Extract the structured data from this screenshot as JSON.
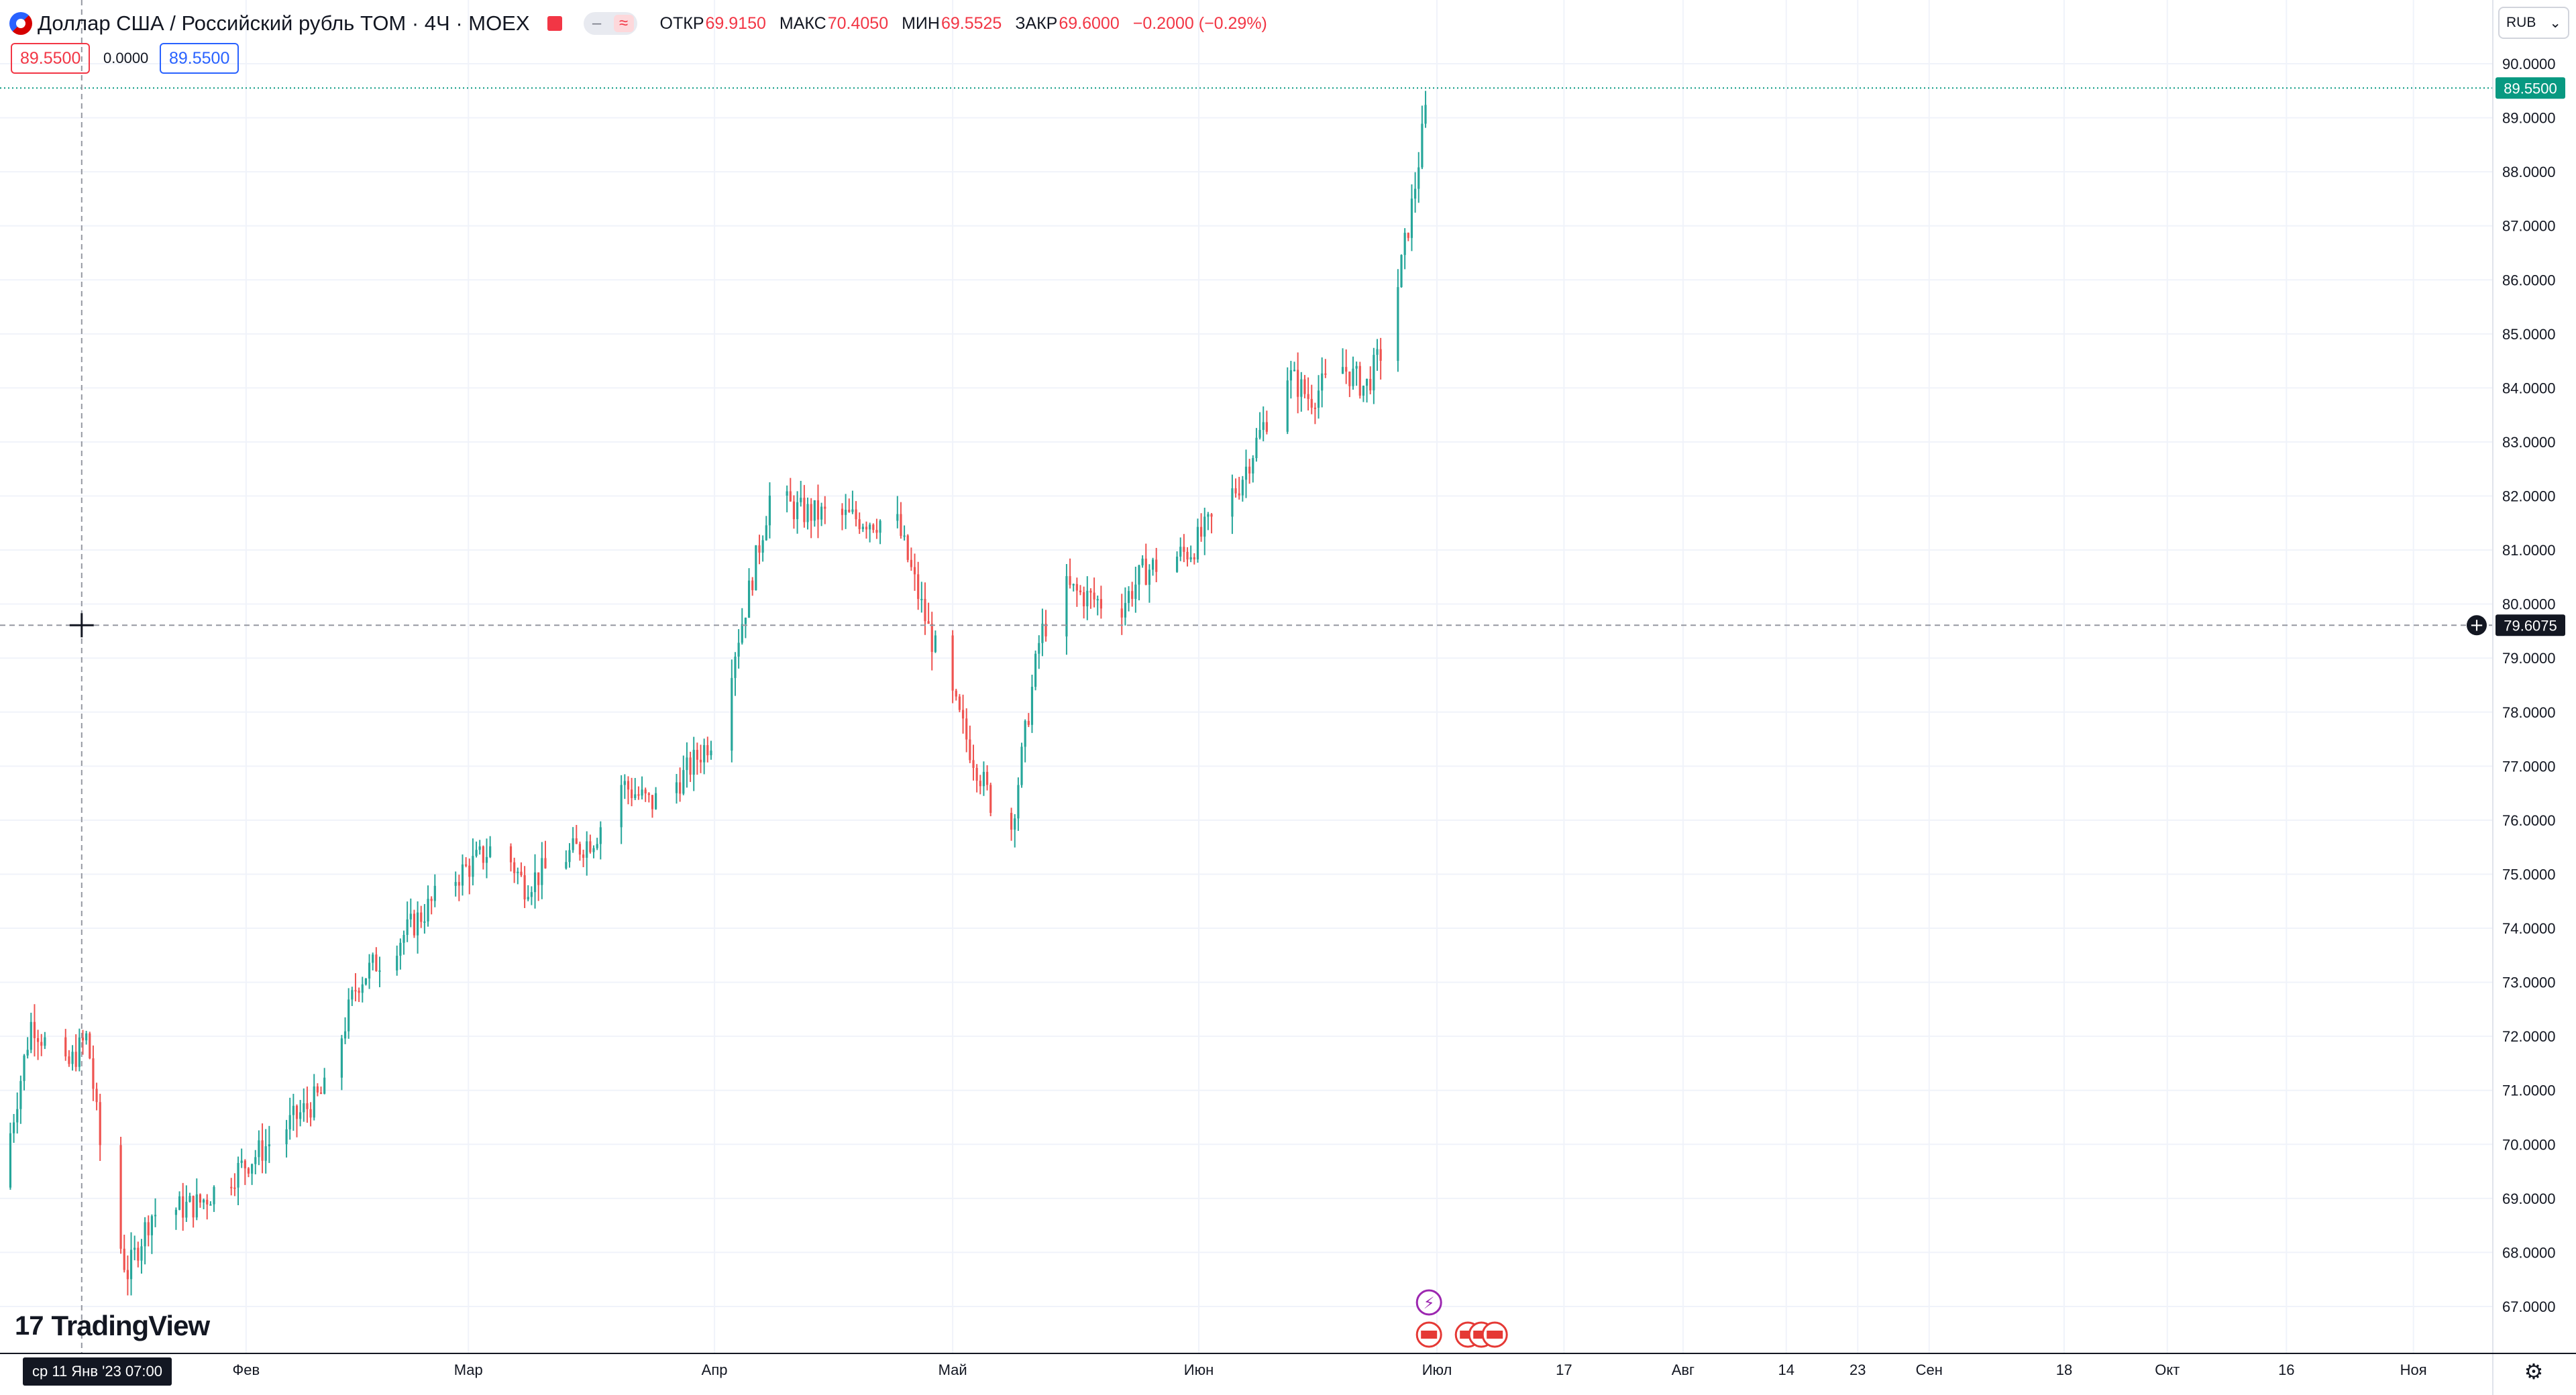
{
  "header": {
    "title": "Доллар США / Российский рубль TOM · 4Ч · MOEX",
    "ohlc": [
      {
        "label": "ОТКР",
        "value": "69.9150"
      },
      {
        "label": "МАКС",
        "value": "70.4050"
      },
      {
        "label": "МИН",
        "value": "69.5525"
      },
      {
        "label": "ЗАКР",
        "value": "69.6000"
      }
    ],
    "change": "−0.2000 (−0.29%)"
  },
  "trade": {
    "sell": "89.5500",
    "spread": "0.0000",
    "buy": "89.5500"
  },
  "currency_button": {
    "label": "RUB"
  },
  "crosshair": {
    "price": "79.6075",
    "date": "ср 11 Янв '23   07:00"
  },
  "brand": {
    "name": "TradingView"
  },
  "colors": {
    "up": "#26a69a",
    "down": "#ef5350",
    "grid": "#f0f3fa",
    "last_price": "#089981",
    "crosshair_label": "#131722"
  },
  "chart_data": {
    "type": "candlestick",
    "last_price": 89.55,
    "ylim": [
      66.5,
      90.5
    ],
    "y_ticks": [
      "67.0000",
      "68.0000",
      "69.0000",
      "70.0000",
      "71.0000",
      "72.0000",
      "73.0000",
      "74.0000",
      "75.0000",
      "76.0000",
      "77.0000",
      "78.0000",
      "79.0000",
      "80.0000",
      "81.0000",
      "82.0000",
      "83.0000",
      "84.0000",
      "85.0000",
      "86.0000",
      "87.0000",
      "88.0000",
      "89.0000",
      "90.0000"
    ],
    "x_ticks": [
      "Фев",
      "Мар",
      "Апр",
      "Май",
      "Июн",
      "Июл",
      "17",
      "Авг",
      "14",
      "23",
      "Сен",
      "18",
      "Окт",
      "16",
      "Ноя"
    ],
    "x_range": [
      "2023-01-01",
      "2023-11-05"
    ],
    "series_dates": [
      "2023-01-01",
      "2023-06-30"
    ],
    "close_path": [
      [
        "2023-01-01",
        69.2
      ],
      [
        "2023-01-05",
        72.3
      ],
      [
        "2023-01-09",
        71.3
      ],
      [
        "2023-01-12",
        72.0
      ],
      [
        "2023-01-14",
        69.5
      ],
      [
        "2023-01-17",
        67.6
      ],
      [
        "2023-01-20",
        68.7
      ],
      [
        "2023-01-26",
        68.9
      ],
      [
        "2023-02-03",
        69.9
      ],
      [
        "2023-02-11",
        71.0
      ],
      [
        "2023-02-15",
        73.0
      ],
      [
        "2023-02-21",
        73.9
      ],
      [
        "2023-02-27",
        74.9
      ],
      [
        "2023-03-05",
        75.6
      ],
      [
        "2023-03-08",
        74.8
      ],
      [
        "2023-03-17",
        75.7
      ],
      [
        "2023-03-20",
        76.7
      ],
      [
        "2023-03-24",
        76.3
      ],
      [
        "2023-03-28",
        76.8
      ],
      [
        "2023-04-01",
        77.6
      ],
      [
        "2023-04-05",
        80.0
      ],
      [
        "2023-04-08",
        82.0
      ],
      [
        "2023-04-12",
        81.7
      ],
      [
        "2023-04-18",
        81.6
      ],
      [
        "2023-04-24",
        81.5
      ],
      [
        "2023-04-28",
        79.5
      ],
      [
        "2023-05-03",
        77.4
      ],
      [
        "2023-05-08",
        75.5
      ],
      [
        "2023-05-12",
        79.4
      ],
      [
        "2023-05-15",
        80.3
      ],
      [
        "2023-05-22",
        79.9
      ],
      [
        "2023-05-25",
        80.6
      ],
      [
        "2023-05-31",
        81.0
      ],
      [
        "2023-06-06",
        82.2
      ],
      [
        "2023-06-12",
        84.3
      ],
      [
        "2023-06-15",
        83.8
      ],
      [
        "2023-06-19",
        84.4
      ],
      [
        "2023-06-22",
        84.0
      ],
      [
        "2023-06-25",
        85.0
      ],
      [
        "2023-06-28",
        87.5
      ],
      [
        "2023-06-30",
        89.55
      ]
    ]
  }
}
